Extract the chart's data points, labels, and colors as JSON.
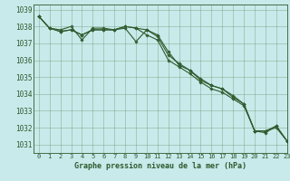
{
  "title": "Graphe pression niveau de la mer (hPa)",
  "bg_color": "#c8eaea",
  "grid_color": "#4a7c4a",
  "line_color": "#2d5a2d",
  "xlim": [
    -0.5,
    23
  ],
  "ylim": [
    1030.5,
    1039.3
  ],
  "yticks": [
    1031,
    1032,
    1033,
    1034,
    1035,
    1036,
    1037,
    1038,
    1039
  ],
  "xticks": [
    0,
    1,
    2,
    3,
    4,
    5,
    6,
    7,
    8,
    9,
    10,
    11,
    12,
    13,
    14,
    15,
    16,
    17,
    18,
    19,
    20,
    21,
    22,
    23
  ],
  "series": [
    [
      1038.6,
      1037.9,
      1037.8,
      1038.0,
      1037.2,
      1037.9,
      1037.9,
      1037.8,
      1037.9,
      1037.1,
      1037.8,
      1037.5,
      1036.5,
      1035.7,
      1035.4,
      1034.9,
      1034.5,
      1034.3,
      1033.8,
      1033.4,
      1031.8,
      1031.8,
      1032.0,
      1031.2
    ],
    [
      1038.6,
      1037.9,
      1037.7,
      1037.8,
      1037.5,
      1037.8,
      1037.8,
      1037.8,
      1038.0,
      1037.9,
      1037.8,
      1037.4,
      1036.3,
      1035.8,
      1035.4,
      1034.8,
      1034.5,
      1034.3,
      1033.9,
      1033.4,
      1031.8,
      1031.8,
      1032.1,
      1031.2
    ],
    [
      1038.6,
      1037.9,
      1037.7,
      1037.8,
      1037.5,
      1037.8,
      1037.8,
      1037.8,
      1038.0,
      1037.9,
      1037.5,
      1037.2,
      1036.0,
      1035.6,
      1035.2,
      1034.7,
      1034.3,
      1034.1,
      1033.7,
      1033.3,
      1031.8,
      1031.7,
      1032.1,
      1031.2
    ]
  ],
  "figsize": [
    3.2,
    2.0
  ],
  "dpi": 100
}
